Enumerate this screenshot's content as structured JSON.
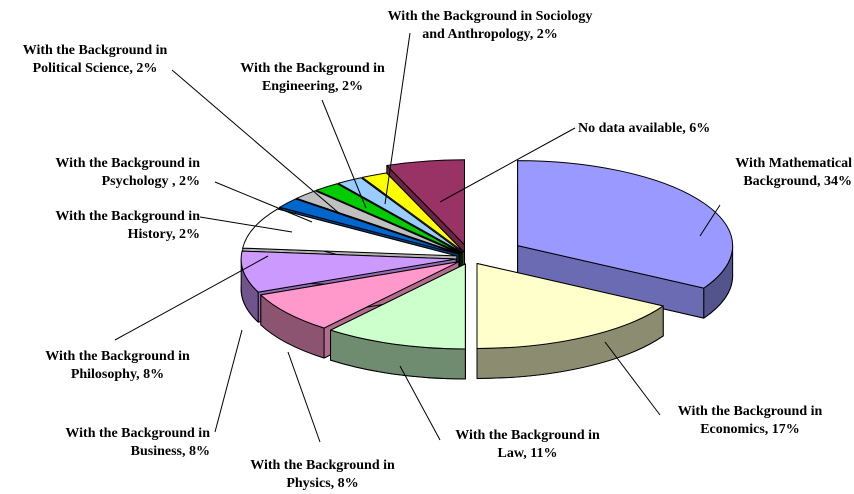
{
  "chart_data": {
    "type": "pie3d",
    "categories": [
      "With Mathematical Background, 34%",
      "With the Background in Economics, 17%",
      "With the Background in Law, 11%",
      "With the Background in Physics, 8%",
      "With the Background in Business, 8%",
      "With the Background in Philosophy, 8%",
      "With the Background in History, 2%",
      "With the Background in Psychology , 2%",
      "With the Background in Political Science, 2%",
      "With the Background in Engineering, 2%",
      "With the Background in Sociology and Anthropology, 2%",
      "No data available, 6%"
    ],
    "values": [
      34,
      17,
      11,
      8,
      8,
      8,
      2,
      2,
      2,
      2,
      2,
      6
    ],
    "colors": [
      "#9999ff",
      "#ffffcc",
      "#ccffcc",
      "#ff99cc",
      "#cc99ff",
      "#ffffff",
      "#0066cc",
      "#c0c0c0",
      "#00cc00",
      "#99ccff",
      "#ffff00",
      "#993366"
    ]
  }
}
